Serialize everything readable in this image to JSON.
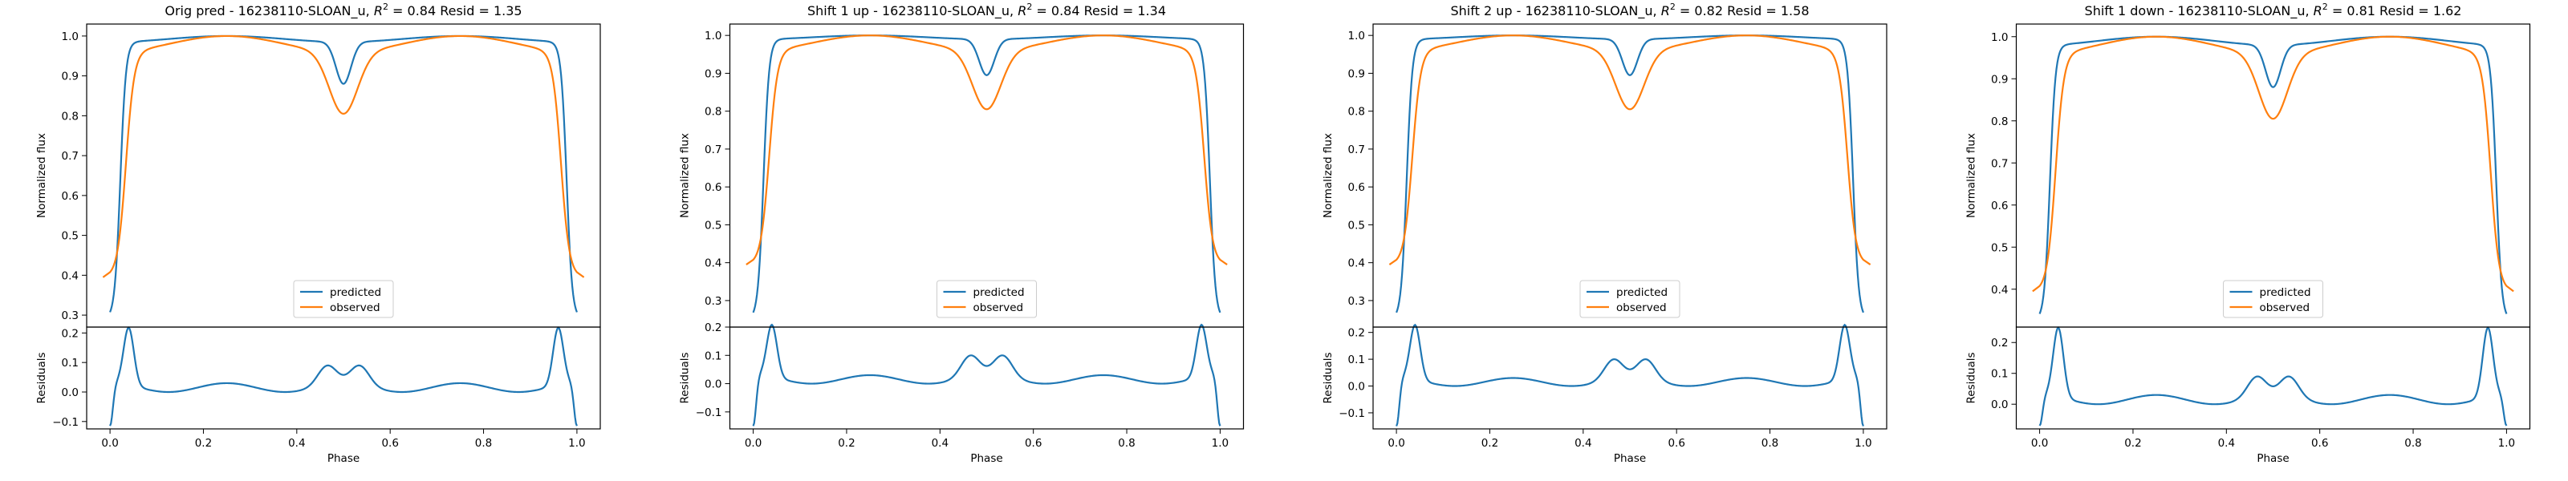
{
  "figure": {
    "background": "#ffffff"
  },
  "chart_data": [
    {
      "type": "line",
      "title_prefix": "Orig pred - 16238110-SLOAN_u, ",
      "r2_symbol_base": "R",
      "r2_symbol_exp": "2",
      "title_suffix": " = 0.84 Resid = 1.35",
      "xlabel": "Phase",
      "ylabel_top": "Normalized flux",
      "ylabel_bottom": "Residuals",
      "xlim": [
        -0.05,
        1.05
      ],
      "xticks": [
        "0.0",
        "0.2",
        "0.4",
        "0.6",
        "0.8",
        "1.0"
      ],
      "ylim_top": [
        0.27,
        1.03
      ],
      "yticks_top": [
        "0.3",
        "0.4",
        "0.5",
        "0.6",
        "0.7",
        "0.8",
        "0.9",
        "1.0"
      ],
      "ylim_bottom": [
        -0.125,
        0.22
      ],
      "yticks_bottom": [
        "-0.1",
        "0.0",
        "0.1",
        "0.2"
      ],
      "legend": [
        "predicted",
        "observed"
      ],
      "legend_loc": "lower center",
      "colors": {
        "predicted": "#1f77b4",
        "observed": "#ff7f0e"
      },
      "params": {
        "pred_min": 0.29,
        "pred_dip": 0.88,
        "pred_shoulder": 0.985,
        "obs_min": 0.395,
        "obs_dip": 0.805,
        "res_edge": 0.195,
        "res_mid": 0.095,
        "res_floor": -0.115
      }
    },
    {
      "type": "line",
      "title_prefix": "Shift 1 up - 16238110-SLOAN_u, ",
      "r2_symbol_base": "R",
      "r2_symbol_exp": "2",
      "title_suffix": " = 0.84 Resid = 1.34",
      "xlabel": "Phase",
      "ylabel_top": "Normalized flux",
      "ylabel_bottom": "Residuals",
      "xlim": [
        -0.05,
        1.05
      ],
      "xticks": [
        "0.0",
        "0.2",
        "0.4",
        "0.6",
        "0.8",
        "1.0"
      ],
      "ylim_top": [
        0.23,
        1.03
      ],
      "yticks_top": [
        "0.3",
        "0.4",
        "0.5",
        "0.6",
        "0.7",
        "0.8",
        "0.9",
        "1.0"
      ],
      "ylim_bottom": [
        -0.16,
        0.2
      ],
      "yticks_bottom": [
        "-0.1",
        "0.0",
        "0.1",
        "0.2"
      ],
      "legend": [
        "predicted",
        "observed"
      ],
      "legend_loc": "lower center",
      "colors": {
        "predicted": "#1f77b4",
        "observed": "#ff7f0e"
      },
      "params": {
        "pred_min": 0.25,
        "pred_dip": 0.895,
        "pred_shoulder": 0.99,
        "obs_min": 0.395,
        "obs_dip": 0.805,
        "res_edge": 0.185,
        "res_mid": 0.105,
        "res_floor": -0.15
      }
    },
    {
      "type": "line",
      "title_prefix": "Shift 2 up - 16238110-SLOAN_u, ",
      "r2_symbol_base": "R",
      "r2_symbol_exp": "2",
      "title_suffix": " = 0.82 Resid = 1.58",
      "xlabel": "Phase",
      "ylabel_top": "Normalized flux",
      "ylabel_bottom": "Residuals",
      "xlim": [
        -0.05,
        1.05
      ],
      "xticks": [
        "0.0",
        "0.2",
        "0.4",
        "0.6",
        "0.8",
        "1.0"
      ],
      "ylim_top": [
        0.23,
        1.03
      ],
      "yticks_top": [
        "0.3",
        "0.4",
        "0.5",
        "0.6",
        "0.7",
        "0.8",
        "0.9",
        "1.0"
      ],
      "ylim_bottom": [
        -0.16,
        0.22
      ],
      "yticks_bottom": [
        "-0.1",
        "0.0",
        "0.1",
        "0.2"
      ],
      "legend": [
        "predicted",
        "observed"
      ],
      "legend_loc": "lower center",
      "colors": {
        "predicted": "#1f77b4",
        "observed": "#ff7f0e"
      },
      "params": {
        "pred_min": 0.25,
        "pred_dip": 0.895,
        "pred_shoulder": 0.99,
        "obs_min": 0.395,
        "obs_dip": 0.805,
        "res_edge": 0.205,
        "res_mid": 0.105,
        "res_floor": -0.15
      }
    },
    {
      "type": "line",
      "title_prefix": "Shift 1 down - 16238110-SLOAN_u, ",
      "r2_symbol_base": "R",
      "r2_symbol_exp": "2",
      "title_suffix": " = 0.81 Resid = 1.62",
      "xlabel": "Phase",
      "ylabel_top": "Normalized flux",
      "ylabel_bottom": "Residuals",
      "xlim": [
        -0.05,
        1.05
      ],
      "xticks": [
        "0.0",
        "0.2",
        "0.4",
        "0.6",
        "0.8",
        "1.0"
      ],
      "ylim_top": [
        0.31,
        1.03
      ],
      "yticks_top": [
        "0.4",
        "0.5",
        "0.6",
        "0.7",
        "0.8",
        "0.9",
        "1.0"
      ],
      "ylim_bottom": [
        -0.08,
        0.25
      ],
      "yticks_bottom": [
        "0.0",
        "0.1",
        "0.2"
      ],
      "legend": [
        "predicted",
        "observed"
      ],
      "legend_loc": "lower center",
      "colors": {
        "predicted": "#1f77b4",
        "observed": "#ff7f0e"
      },
      "params": {
        "pred_min": 0.325,
        "pred_dip": 0.88,
        "pred_shoulder": 0.98,
        "obs_min": 0.395,
        "obs_dip": 0.805,
        "res_edge": 0.225,
        "res_mid": 0.095,
        "res_floor": -0.07
      }
    }
  ]
}
